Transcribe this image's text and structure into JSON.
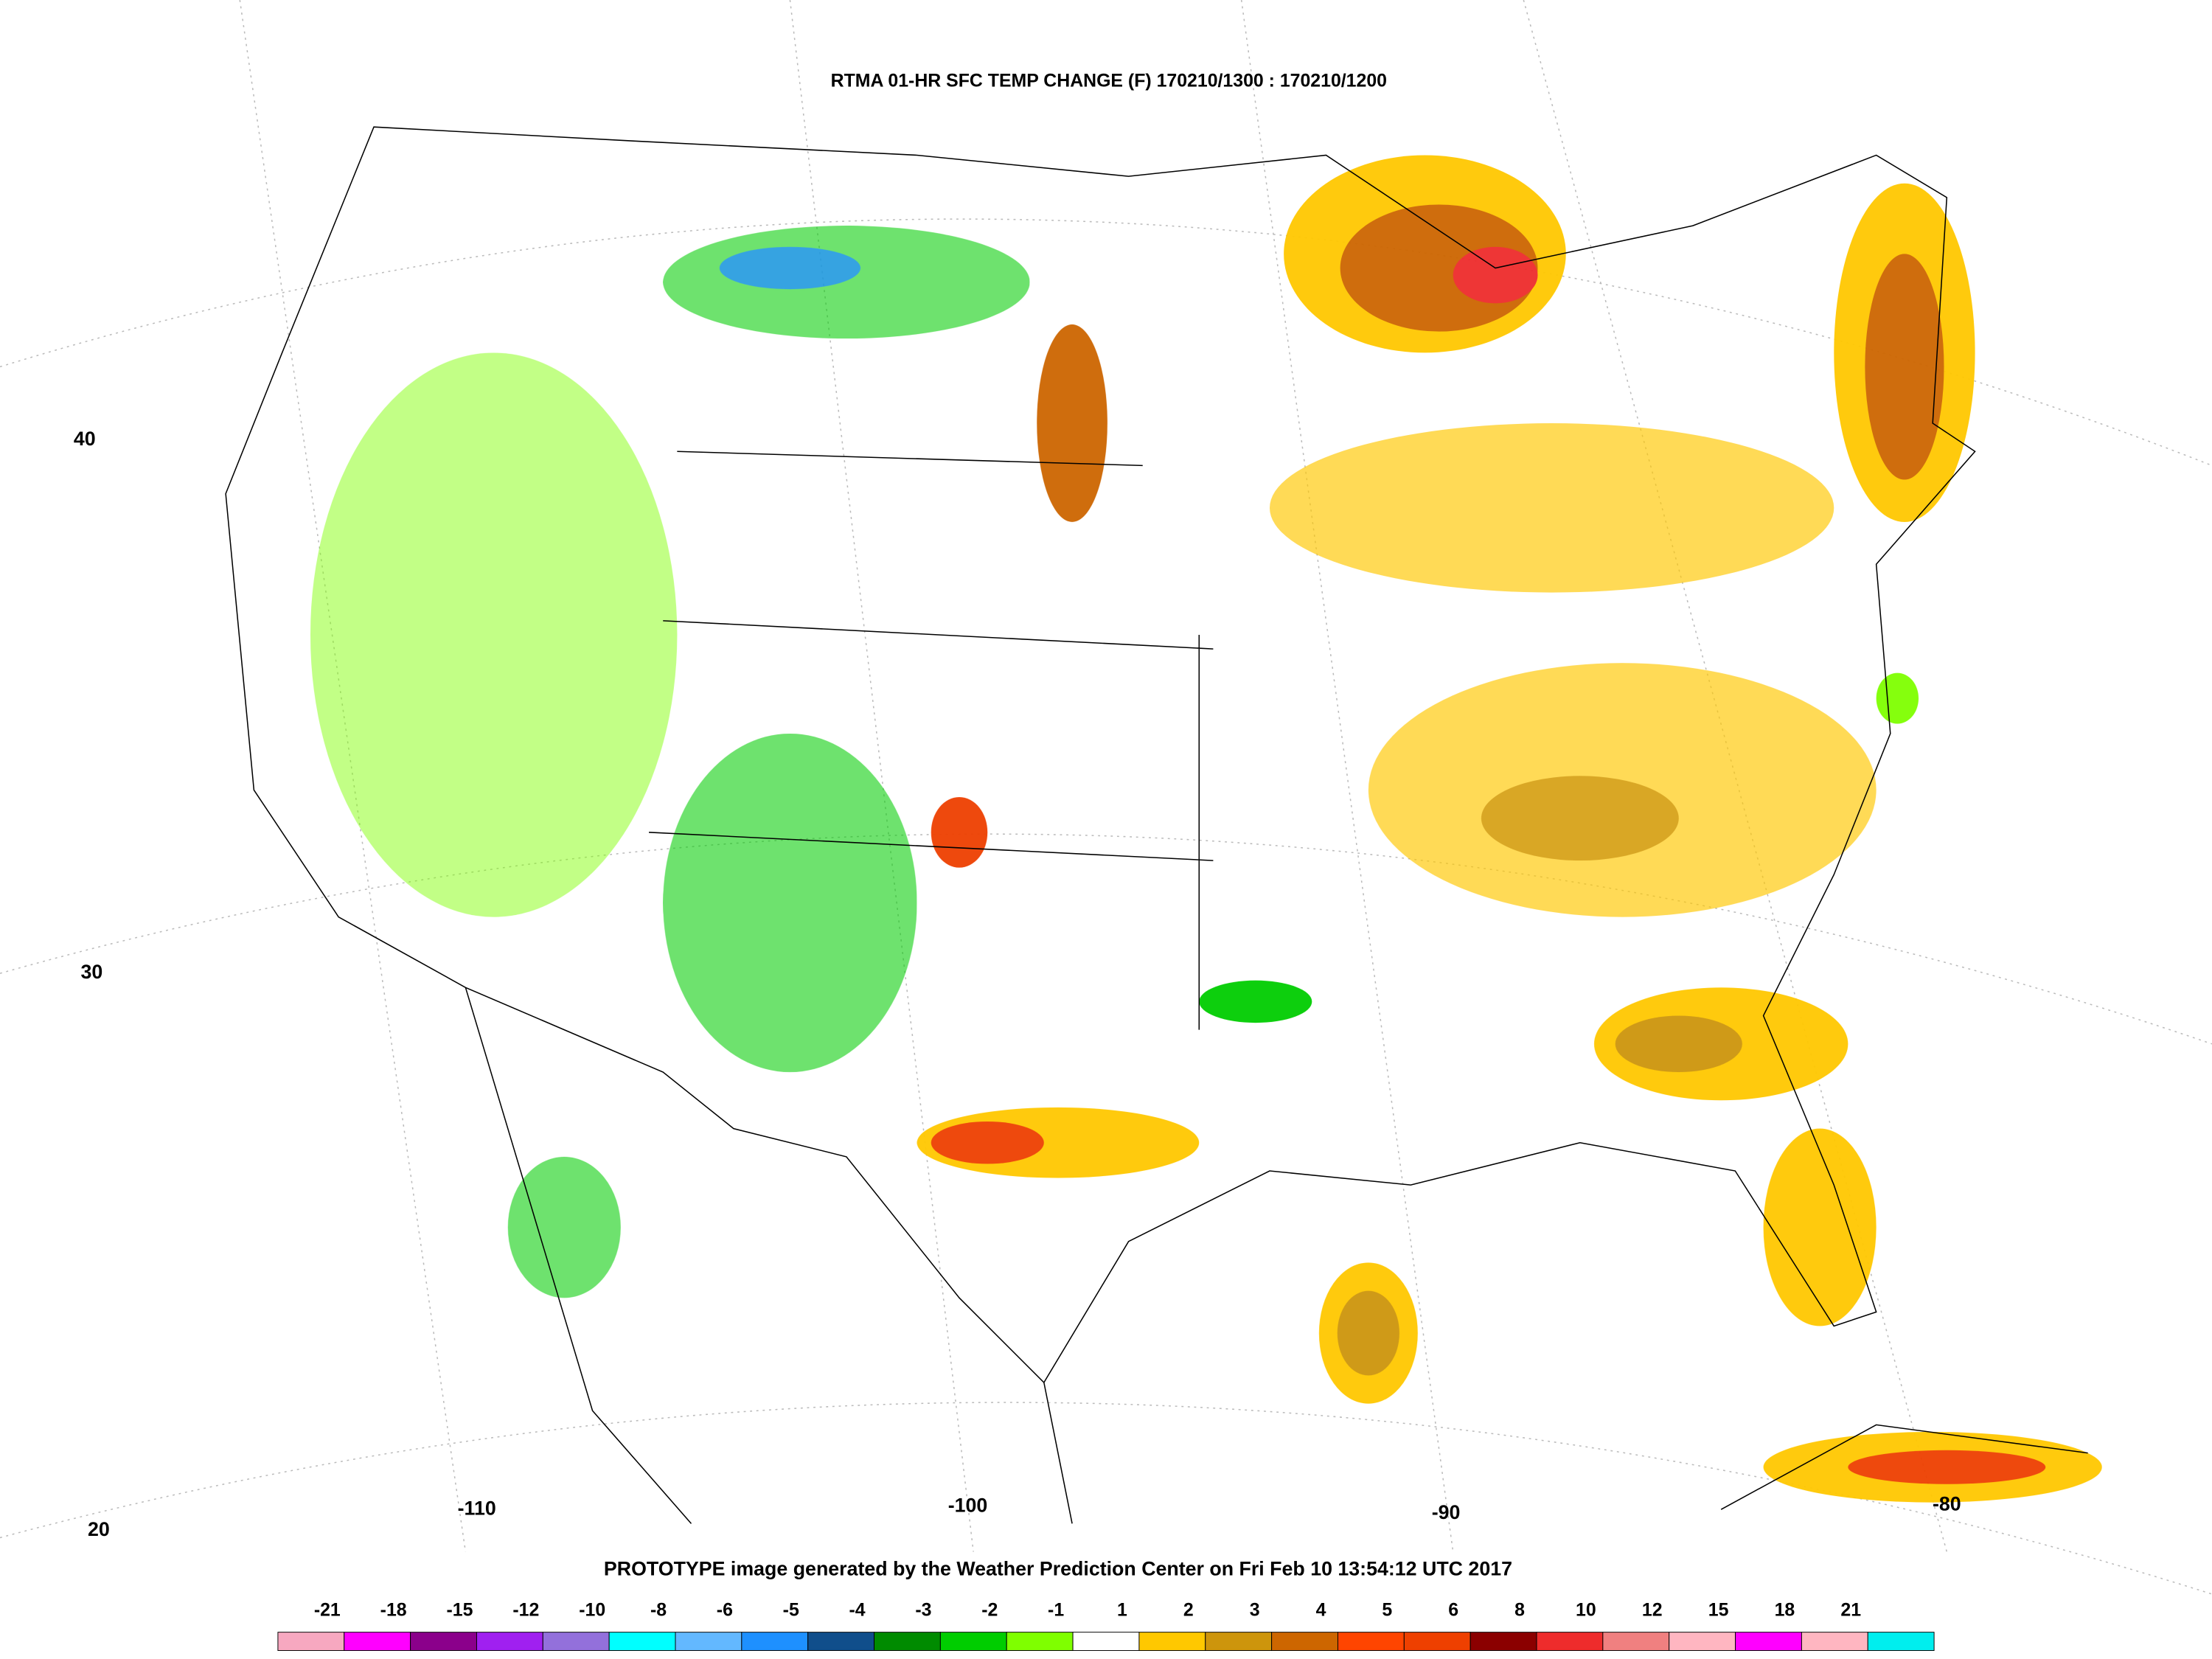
{
  "map": {
    "title": "RTMA 01-HR SFC TEMP CHANGE (F) 170210/1300 : 170210/1200",
    "footer": "PROTOTYPE image generated by the Weather Prediction Center on Fri Feb 10 13:54:12 UTC 2017",
    "lat_labels": [
      40,
      30,
      20
    ],
    "lon_labels": [
      -110,
      -100,
      -90,
      -80
    ],
    "colorbar": {
      "labels": [
        -21,
        -18,
        -15,
        -12,
        -10,
        -8,
        -6,
        -5,
        -4,
        -3,
        -2,
        -1,
        1,
        2,
        3,
        4,
        5,
        6,
        8,
        10,
        12,
        15,
        18,
        21
      ],
      "colors": [
        "#f7a8c0",
        "#ff00ff",
        "#8b008b",
        "#a020f0",
        "#9370db",
        "#00ffff",
        "#63b8ff",
        "#1e90ff",
        "#104e8b",
        "#008b00",
        "#00cd00",
        "#7fff00",
        "#ffffff",
        "#ffc800",
        "#cd950c",
        "#cd6600",
        "#ff4500",
        "#ee4000",
        "#8b0000",
        "#ee2c2c",
        "#f08080",
        "#ffb6c1",
        "#ff00ff",
        "#ffb6c1",
        "#00eeee"
      ]
    }
  }
}
